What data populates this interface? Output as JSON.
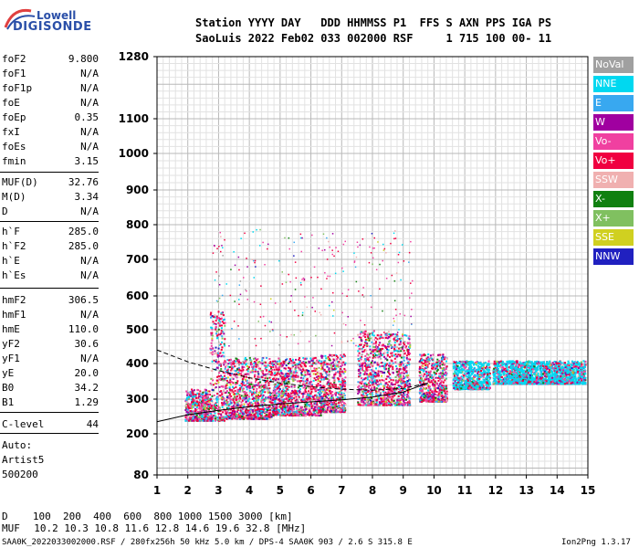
{
  "logo": {
    "brand": "Lowell",
    "name": "DIGISONDE"
  },
  "header": {
    "line1": "Station YYYY DAY   DDD HHMMSS P1  FFS S AXN PPS IGA PS",
    "line2": "SaoLuis 2022 Feb02 033 002000 RSF     1 715 100 00- 11"
  },
  "scaled_params": [
    {
      "name": "foF2",
      "value": "9.800"
    },
    {
      "name": "foF1",
      "value": "N/A"
    },
    {
      "name": "foF1p",
      "value": "N/A"
    },
    {
      "name": "foE",
      "value": "N/A"
    },
    {
      "name": "foEp",
      "value": "0.35"
    },
    {
      "name": "fxI",
      "value": "N/A"
    },
    {
      "name": "foEs",
      "value": "N/A"
    },
    {
      "name": "fmin",
      "value": "3.15"
    },
    {
      "name": "MUF(D)",
      "value": "32.76"
    },
    {
      "name": "M(D)",
      "value": "3.34"
    },
    {
      "name": "D",
      "value": "N/A"
    },
    {
      "name": "h`F",
      "value": "285.0"
    },
    {
      "name": "h`F2",
      "value": "285.0"
    },
    {
      "name": "h`E",
      "value": "N/A"
    },
    {
      "name": "h`Es",
      "value": "N/A"
    },
    {
      "name": "hmF2",
      "value": "306.5"
    },
    {
      "name": "hmF1",
      "value": "N/A"
    },
    {
      "name": "hmE",
      "value": "110.0"
    },
    {
      "name": "yF2",
      "value": "30.6"
    },
    {
      "name": "yF1",
      "value": "N/A"
    },
    {
      "name": "yE",
      "value": "20.0"
    },
    {
      "name": "B0",
      "value": "34.2"
    },
    {
      "name": "B1",
      "value": "1.29"
    },
    {
      "name": "C-level",
      "value": "44"
    }
  ],
  "autoscaling": [
    "Auto:",
    "Artist5",
    "500200"
  ],
  "legend": [
    {
      "label": "NoVal",
      "color": "#a0a0a0"
    },
    {
      "label": "NNE",
      "color": "#00d8f0"
    },
    {
      "label": "E",
      "color": "#38a8f0"
    },
    {
      "label": "W",
      "color": "#a000a0"
    },
    {
      "label": "Vo-",
      "color": "#f040a0"
    },
    {
      "label": "Vo+",
      "color": "#f00040"
    },
    {
      "label": "SSW",
      "color": "#f0b0b0"
    },
    {
      "label": "X-",
      "color": "#108010"
    },
    {
      "label": "X+",
      "color": "#80c060"
    },
    {
      "label": "SSE",
      "color": "#d0d020"
    },
    {
      "label": "NNW",
      "color": "#2020c0"
    }
  ],
  "chart_data": {
    "type": "scatter",
    "xlim": [
      1,
      15
    ],
    "x_ticks": [
      1,
      2,
      3,
      4,
      5,
      6,
      7,
      8,
      9,
      10,
      11,
      12,
      13,
      14,
      15
    ],
    "y_ticks": [
      80,
      200,
      300,
      400,
      500,
      600,
      700,
      800,
      900,
      1000,
      1100,
      1280
    ],
    "grid": true,
    "profile_curve": {
      "x": [
        1,
        2,
        3,
        4,
        5,
        6,
        7,
        8,
        9,
        9.8
      ],
      "y": [
        235,
        255,
        268,
        278,
        286,
        292,
        298,
        306,
        320,
        345
      ]
    },
    "extrapolated_curve": {
      "x": [
        1,
        2,
        3,
        3.5,
        4,
        5,
        6,
        7,
        8,
        9,
        9.8
      ],
      "y": [
        440,
        405,
        380,
        370,
        360,
        345,
        335,
        328,
        325,
        330,
        345
      ]
    },
    "trace_clusters": [
      {
        "x": [
          1.9,
          2.7
        ],
        "y": [
          240,
          330
        ]
      },
      {
        "x": [
          2.7,
          3.2
        ],
        "y": [
          240,
          560
        ]
      },
      {
        "x": [
          3.2,
          4.7
        ],
        "y": [
          245,
          420
        ]
      },
      {
        "x": [
          4.7,
          6.3
        ],
        "y": [
          255,
          420
        ]
      },
      {
        "x": [
          6.3,
          7.1
        ],
        "y": [
          265,
          430
        ]
      },
      {
        "x": [
          7.5,
          8.5
        ],
        "y": [
          285,
          500
        ]
      },
      {
        "x": [
          8.5,
          9.2
        ],
        "y": [
          285,
          490
        ]
      },
      {
        "x": [
          9.5,
          10.4
        ],
        "y": [
          295,
          430
        ]
      },
      {
        "x": [
          10.6,
          11.8
        ],
        "y": [
          330,
          410
        ]
      },
      {
        "x": [
          11.9,
          14.9
        ],
        "y": [
          345,
          410
        ]
      }
    ]
  },
  "footer": {
    "d_label": "D",
    "d_values": "   100  200  400  600  800 1000 1500 3000 [km]",
    "muf_label": "MUF",
    "muf_values": "  10.2 10.3 10.8 11.6 12.8 14.6 19.6 32.8 [MHz]",
    "file_info": "SAA0K_2022033002000.RSF / 280fx256h 50 kHz 5.0 km / DPS-4 SAA0K 903 / 2.6 S 315.8 E",
    "version": "Ion2Png 1.3.17"
  }
}
